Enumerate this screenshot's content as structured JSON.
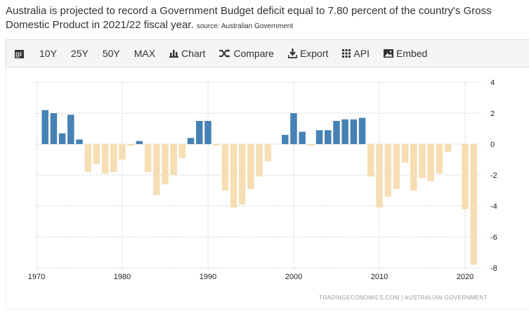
{
  "description": {
    "text": "Australia is projected to record a Government Budget deficit equal to 7.80 percent of the country's Gross Domestic Product in 2021/22 fiscal year.",
    "line1": "Australia is projected to record a Government Budget deficit equal to 7.80 percent of the country's Gross",
    "line2": "Domestic Product in 2021/22 fiscal year.",
    "source": "source: Australian Government"
  },
  "toolbar": {
    "items": [
      {
        "label": "",
        "icon": "calendar-icon"
      },
      {
        "label": "10Y"
      },
      {
        "label": "25Y"
      },
      {
        "label": "50Y"
      },
      {
        "label": "MAX"
      },
      {
        "label": "Chart",
        "icon": "bar-chart-icon"
      },
      {
        "label": "Compare",
        "icon": "shuffle-icon"
      },
      {
        "label": "Export",
        "icon": "download-icon"
      },
      {
        "label": "API",
        "icon": "grid-icon"
      },
      {
        "label": "Embed",
        "icon": "image-icon"
      }
    ]
  },
  "chart_data": {
    "type": "bar",
    "x": [
      1971,
      1972,
      1973,
      1974,
      1975,
      1976,
      1977,
      1978,
      1979,
      1980,
      1981,
      1982,
      1983,
      1984,
      1985,
      1986,
      1987,
      1988,
      1989,
      1990,
      1991,
      1992,
      1993,
      1994,
      1995,
      1996,
      1997,
      1998,
      1999,
      2000,
      2001,
      2002,
      2003,
      2004,
      2005,
      2006,
      2007,
      2008,
      2009,
      2010,
      2011,
      2012,
      2013,
      2014,
      2015,
      2016,
      2017,
      2018,
      2019,
      2020,
      2021
    ],
    "values": [
      2.2,
      2.0,
      0.7,
      1.9,
      0.3,
      -1.8,
      -1.3,
      -1.9,
      -1.8,
      -1.0,
      -0.1,
      0.2,
      -1.8,
      -3.3,
      -2.6,
      -2.0,
      -0.9,
      0.4,
      1.5,
      1.5,
      -0.1,
      -3.0,
      -4.1,
      -3.9,
      -2.9,
      -2.1,
      -1.1,
      0,
      0.6,
      2.0,
      0.8,
      -0.1,
      0.9,
      0.9,
      1.5,
      1.6,
      1.6,
      1.7,
      -2.1,
      -4.1,
      -3.4,
      -2.9,
      -1.2,
      -3.0,
      -2.2,
      -2.4,
      -1.9,
      -0.5,
      0,
      -4.2,
      -7.8
    ],
    "xticks": [
      "1970",
      "1980",
      "1990",
      "2000",
      "2010",
      "2020"
    ],
    "yticks": [
      "4",
      "2",
      "0",
      "-2",
      "-4",
      "-6",
      "-8"
    ],
    "xlim": [
      1970,
      2022
    ],
    "ylim": [
      -8,
      4
    ],
    "grid": true,
    "positive_color": "#4682b4",
    "negative_color": "#f5deb3",
    "footer": "TRADINGECONOMICS.COM  |  AUSTRALIAN GOVERNMENT"
  }
}
